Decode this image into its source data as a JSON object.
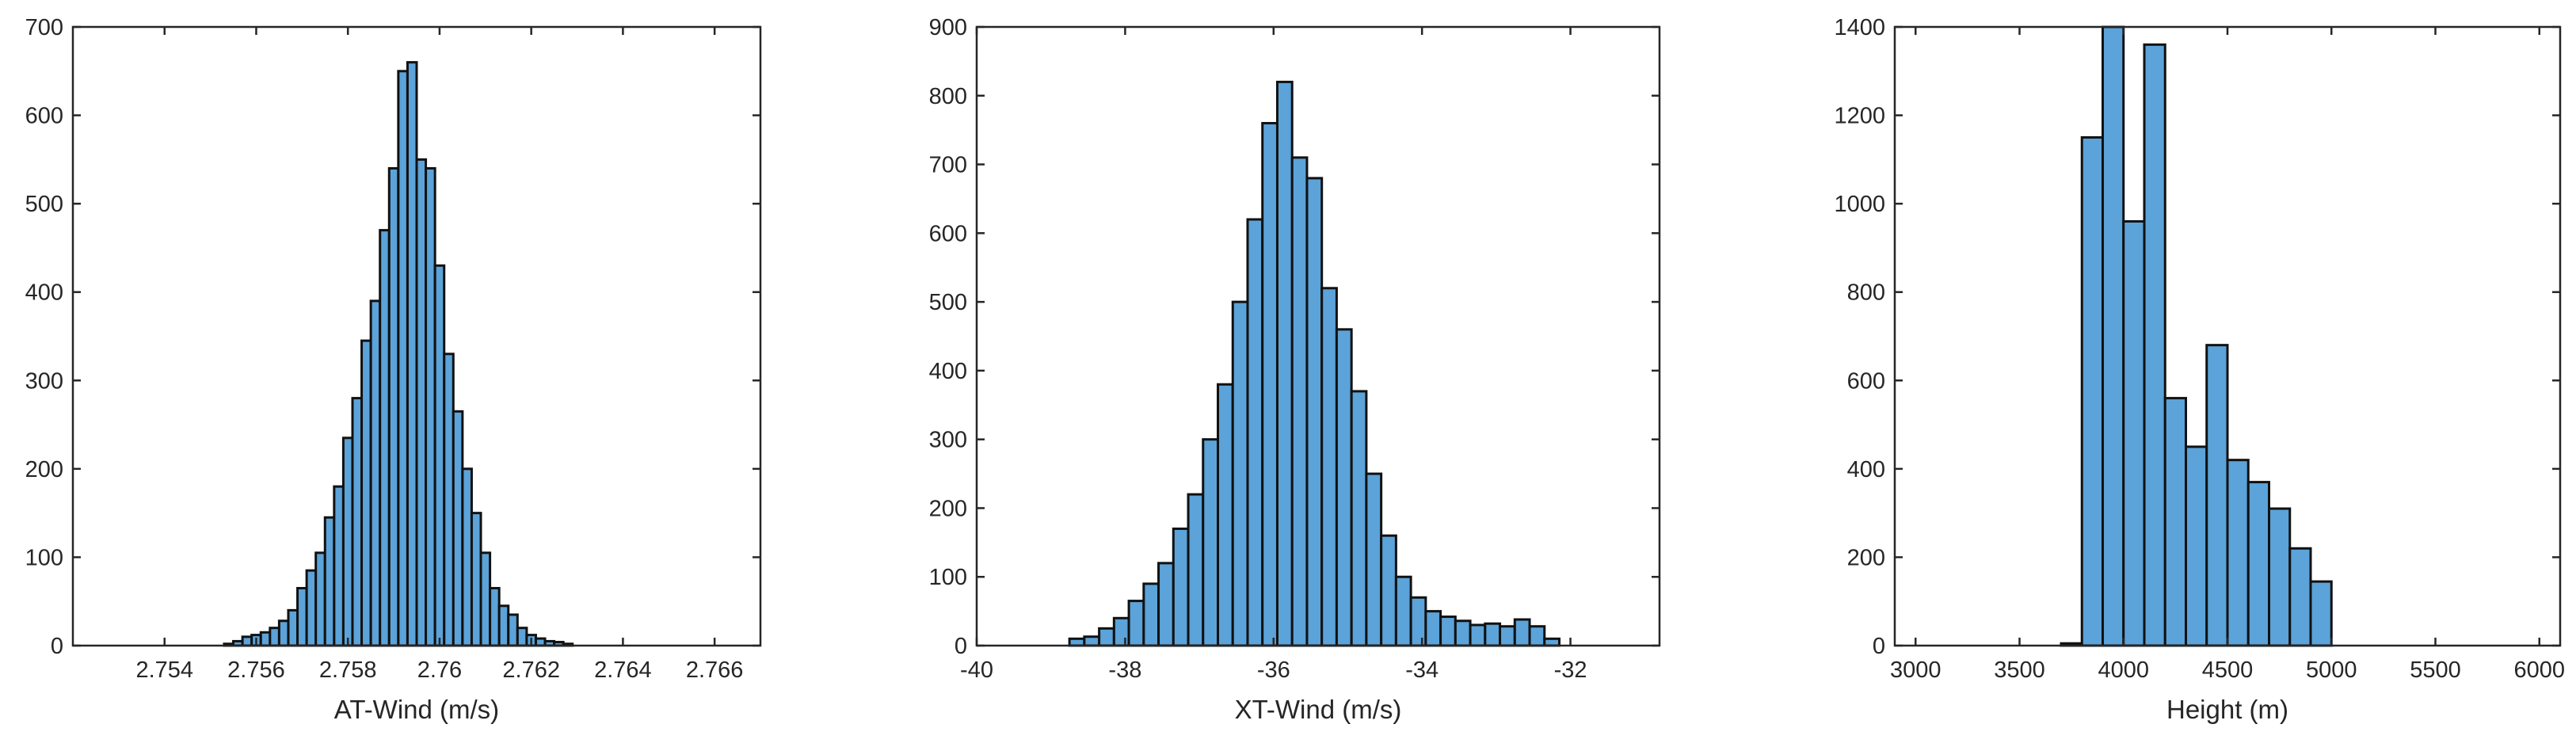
{
  "chart_data": [
    {
      "type": "bar",
      "xlabel": "AT-Wind (m/s)",
      "ylabel": "",
      "xlim": [
        2.752,
        2.767
      ],
      "ylim": [
        0,
        700
      ],
      "xticks": [
        2.754,
        2.756,
        2.758,
        2.76,
        2.762,
        2.764,
        2.766
      ],
      "xtick_labels": [
        "2.754",
        "2.756",
        "2.758",
        "2.76",
        "2.762",
        "2.764",
        "2.766"
      ],
      "yticks": [
        0,
        100,
        200,
        300,
        400,
        500,
        600,
        700
      ],
      "bar_color": "#5ba3d9",
      "bin_start": 2.7553,
      "bin_width": 0.0002,
      "values": [
        2,
        5,
        10,
        12,
        15,
        20,
        28,
        40,
        65,
        85,
        105,
        145,
        180,
        235,
        280,
        345,
        390,
        470,
        540,
        650,
        660,
        550,
        540,
        430,
        330,
        265,
        200,
        150,
        105,
        65,
        45,
        35,
        20,
        12,
        8,
        5,
        4,
        2
      ]
    },
    {
      "type": "bar",
      "xlabel": "XT-Wind (m/s)",
      "ylabel": "",
      "xlim": [
        -40,
        -30.8
      ],
      "ylim": [
        0,
        900
      ],
      "xticks": [
        -40,
        -38,
        -36,
        -34,
        -32
      ],
      "xtick_labels": [
        "-40",
        "-38",
        "-36",
        "-34",
        "-32"
      ],
      "yticks": [
        0,
        100,
        200,
        300,
        400,
        500,
        600,
        700,
        800,
        900
      ],
      "bar_color": "#5ba3d9",
      "bin_start": -38.75,
      "bin_width": 0.2,
      "values": [
        10,
        13,
        25,
        40,
        65,
        90,
        120,
        170,
        220,
        300,
        380,
        500,
        620,
        760,
        820,
        710,
        680,
        520,
        460,
        370,
        250,
        160,
        100,
        70,
        50,
        42,
        36,
        30,
        32,
        28,
        38,
        28,
        10
      ]
    },
    {
      "type": "bar",
      "xlabel": "Height (m)",
      "ylabel": "",
      "xlim": [
        2900,
        6100
      ],
      "ylim": [
        0,
        1400
      ],
      "xticks": [
        3000,
        3500,
        4000,
        4500,
        5000,
        5500,
        6000
      ],
      "xtick_labels": [
        "3000",
        "3500",
        "4000",
        "4500",
        "5000",
        "5500",
        "6000"
      ],
      "yticks": [
        0,
        200,
        400,
        600,
        800,
        1000,
        1200,
        1400
      ],
      "bar_color": "#5ba3d9",
      "bin_start": 3700,
      "bin_width": 100,
      "values": [
        5,
        1150,
        1400,
        960,
        1360,
        560,
        450,
        680,
        420,
        370,
        310,
        220,
        145
      ]
    }
  ]
}
